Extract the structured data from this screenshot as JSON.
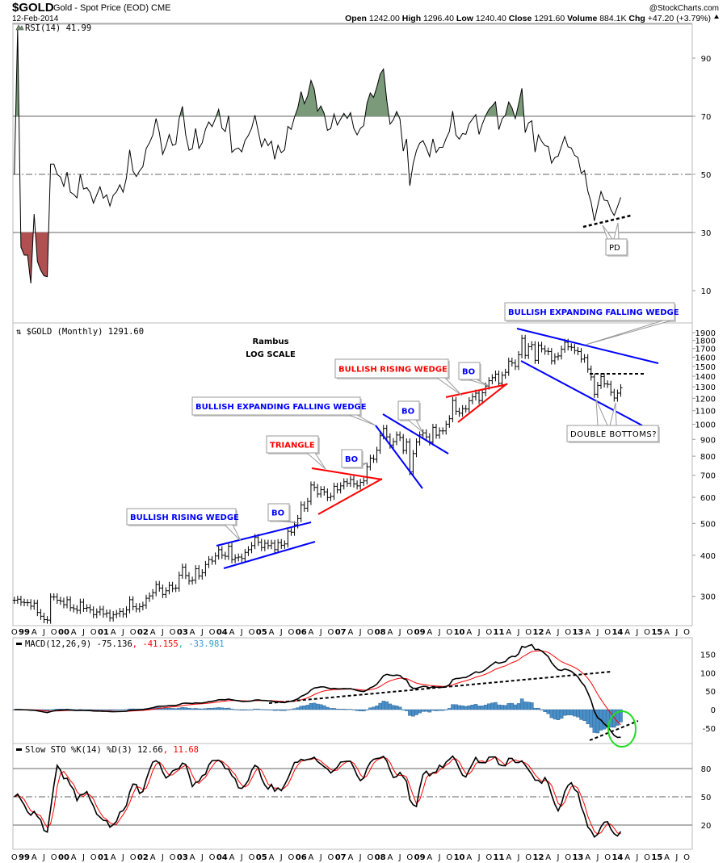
{
  "header": {
    "symbol": "$GOLD",
    "name": "Gold - Spot Price (EOD) CME",
    "copyright": "@StockCharts.com",
    "date": "12-Feb-2014",
    "open_label": "Open",
    "open": "1242.00",
    "high_label": "High",
    "high": "1296.40",
    "low_label": "Low",
    "low": "1240.40",
    "close_label": "Close",
    "close": "1291.60",
    "volume_label": "Volume",
    "volume": "884.1K",
    "chg_label": "Chg",
    "chg": "+47.20 (+3.79%)"
  },
  "colors": {
    "up_fill": "#7a9a7a",
    "down_fill": "#b05050",
    "macd": "#000000",
    "signal": "#ff0000",
    "histogram": "#4a90c8",
    "annotation_blue": "#0000ff",
    "annotation_red": "#ff0000",
    "circle": "#22dd22"
  },
  "chart_data": [
    {
      "type": "line",
      "panel": "rsi",
      "legend": "RSI(14) 41.99",
      "indicator": "RSI(14)",
      "last_value": 41.99,
      "y_ticks": [
        "90",
        "70",
        "50",
        "30",
        "10"
      ],
      "ylim": [
        0,
        100
      ],
      "reference_lines": [
        70,
        50,
        30
      ],
      "annotations": {
        "pd": "PD"
      }
    },
    {
      "type": "bar",
      "panel": "price",
      "legend": "$GOLD (Monthly) 1291.60",
      "scale": "log",
      "start_month": "Oct 1998",
      "end_month": "Feb 2014",
      "closes": [
        292,
        294,
        288,
        287,
        287,
        280,
        286,
        268,
        261,
        255,
        254,
        299,
        299,
        292,
        290,
        283,
        293,
        277,
        275,
        272,
        288,
        276,
        277,
        273,
        264,
        269,
        274,
        265,
        267,
        258,
        264,
        266,
        270,
        265,
        273,
        293,
        279,
        275,
        279,
        282,
        296,
        301,
        308,
        326,
        318,
        304,
        312,
        324,
        317,
        318,
        348,
        368,
        347,
        334,
        336,
        364,
        346,
        354,
        375,
        388,
        384,
        398,
        416,
        400,
        397,
        426,
        388,
        393,
        395,
        391,
        408,
        416,
        428,
        453,
        438,
        422,
        435,
        428,
        435,
        416,
        437,
        429,
        433,
        473,
        470,
        495,
        517,
        569,
        556,
        583,
        654,
        643,
        614,
        633,
        623,
        599,
        604,
        648,
        632,
        650,
        669,
        662,
        680,
        659,
        650,
        666,
        673,
        743,
        789,
        783,
        834,
        923,
        972,
        916,
        865,
        886,
        928,
        912,
        833,
        884,
        718,
        815,
        884,
        928,
        942,
        916,
        884,
        979,
        927,
        955,
        955,
        1001,
        1040,
        1182,
        1096,
        1081,
        1116,
        1113,
        1180,
        1212,
        1244,
        1181,
        1247,
        1307,
        1357,
        1386,
        1421,
        1332,
        1410,
        1439,
        1556,
        1536,
        1500,
        1628,
        1825,
        1620,
        1722,
        1746,
        1565,
        1738,
        1697,
        1669,
        1664,
        1559,
        1604,
        1614,
        1692,
        1776,
        1720,
        1714,
        1675,
        1664,
        1578,
        1595,
        1472,
        1393,
        1234,
        1313,
        1396,
        1327,
        1323,
        1251,
        1202,
        1244,
        1292
      ],
      "y_ticks": [
        "1900",
        "1800",
        "1700",
        "1600",
        "1500",
        "1400",
        "1300",
        "1200",
        "1100",
        "1000",
        "900",
        "800",
        "700",
        "600",
        "500",
        "400",
        "300"
      ],
      "annotations": {
        "author": "Rambus",
        "scale_note": "LOG SCALE",
        "rising_wedge_1": "BULLISH RISING WEDGE",
        "bo_1": "BO",
        "triangle": "TRIANGLE",
        "bo_2": "BO",
        "expanding_wedge_1": "BULLISH EXPANDING FALLING WEDGE",
        "bo_3": "BO",
        "rising_wedge_2": "BULLISH RISING WEDGE",
        "bo_4": "BO",
        "expanding_wedge_2": "BULLISH EXPANDING FALLING WEDGE",
        "double_bottoms": "DOUBLE BOTTOMS?"
      }
    },
    {
      "type": "line",
      "panel": "macd",
      "indicator": "MACD(12,26,9)",
      "values_text": {
        "macd": "-75.136",
        "signal": "-41.155",
        "histogram": "-33.981"
      },
      "y_ticks": [
        "150",
        "100",
        "50",
        "0",
        "-50"
      ]
    },
    {
      "type": "line",
      "panel": "stochastic",
      "indicator": "Slow STO %K(14) %D(3)",
      "values_text": {
        "k": "12.66",
        "d": "11.68"
      },
      "y_ticks": [
        "80",
        "50",
        "20"
      ],
      "reference_lines": [
        80,
        50,
        20
      ]
    }
  ],
  "x_axis": {
    "tick_labels": [
      "O",
      "99",
      "A",
      "J",
      "O",
      "00",
      "A",
      "J",
      "O",
      "01",
      "A",
      "J",
      "O",
      "02",
      "A",
      "J",
      "O",
      "03",
      "A",
      "J",
      "O",
      "04",
      "A",
      "J",
      "O",
      "05",
      "A",
      "J",
      "O",
      "06",
      "A",
      "J",
      "O",
      "07",
      "A",
      "J",
      "O",
      "08",
      "A",
      "J",
      "O",
      "09",
      "A",
      "J",
      "O",
      "10",
      "A",
      "J",
      "O",
      "11",
      "A",
      "J",
      "O",
      "12",
      "A",
      "J",
      "O",
      "13",
      "A",
      "J",
      "O",
      "14",
      "A",
      "J",
      "O",
      "15",
      "A",
      "J",
      "O"
    ]
  }
}
